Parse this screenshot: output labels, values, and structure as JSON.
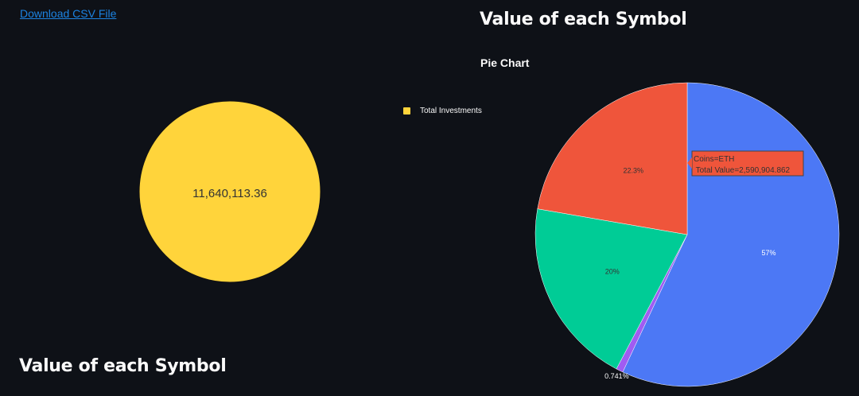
{
  "download": {
    "label": "Download CSV File"
  },
  "total_chart": {
    "legend_label": "Total Investments",
    "center_value": "11,640,113.36",
    "fill_color": "#ffd43b"
  },
  "left_heading": "Value of each Symbol",
  "right_heading": "Value of each Symbol",
  "subheading": "Pie Chart",
  "chart_data": {
    "type": "pie",
    "slices": [
      {
        "label": "57%",
        "value": 57.0,
        "color": "#4c78f5",
        "label_color": "#ffffff"
      },
      {
        "label": "0.741%",
        "value": 0.741,
        "color": "#a05cf2",
        "label_color": "#ffffff"
      },
      {
        "label": "20%",
        "value": 20.0,
        "color": "#00cc96",
        "label_color": "#333333"
      },
      {
        "label": "22.3%",
        "value": 22.3,
        "color": "#ef553b",
        "label_color": "#333333"
      }
    ],
    "tooltip": {
      "line1": "Coins=ETH",
      "line2": " Total Value=2,590,904.862",
      "color": "#ef553b"
    }
  }
}
